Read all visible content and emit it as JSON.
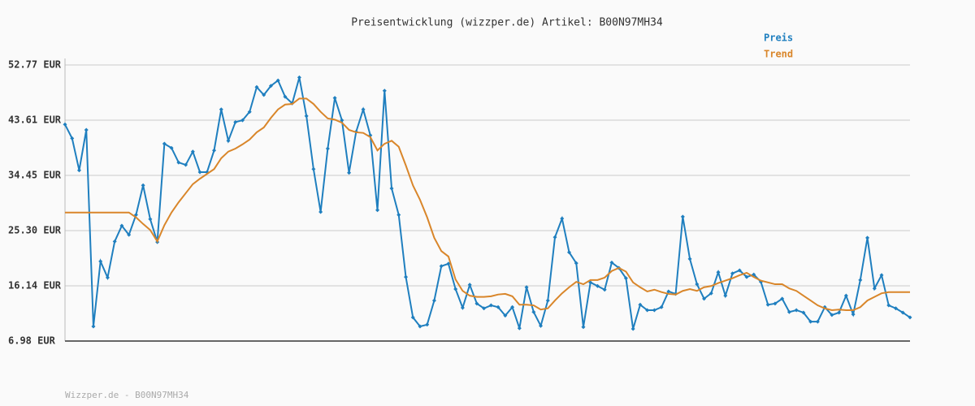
{
  "chart_data": {
    "type": "line",
    "title": "Preisentwicklung (wizzper.de) Artikel: B00N97MH34",
    "footer": "Wizzper.de - B00N97MH34",
    "ylim": [
      6.98,
      52.77
    ],
    "yticks": [
      {
        "value": 6.98,
        "label": "6.98 EUR"
      },
      {
        "value": 16.14,
        "label": "16.14 EUR"
      },
      {
        "value": 25.3,
        "label": "25.30 EUR"
      },
      {
        "value": 34.45,
        "label": "34.45 EUR"
      },
      {
        "value": 43.61,
        "label": "43.61 EUR"
      },
      {
        "value": 52.77,
        "label": "52.77 EUR"
      }
    ],
    "grid": true,
    "legend": "top-right",
    "series": [
      {
        "name": "Preis",
        "color": "#1f7fbf",
        "markers": true,
        "values": [
          42.9,
          40.6,
          35.3,
          42.0,
          9.4,
          20.2,
          17.5,
          23.5,
          26.1,
          24.6,
          27.9,
          32.8,
          27.2,
          23.4,
          39.7,
          39.0,
          36.6,
          36.2,
          38.4,
          35.0,
          35.0,
          38.6,
          45.4,
          40.2,
          43.3,
          43.6,
          45.0,
          49.1,
          47.8,
          49.3,
          50.2,
          47.5,
          46.4,
          50.7,
          44.3,
          35.5,
          28.4,
          38.9,
          47.3,
          43.6,
          34.9,
          41.7,
          45.4,
          41.1,
          28.7,
          48.5,
          32.3,
          27.9,
          17.6,
          10.9,
          9.4,
          9.7,
          13.7,
          19.4,
          19.8,
          15.6,
          12.5,
          16.3,
          13.2,
          12.4,
          12.9,
          12.6,
          11.2,
          12.6,
          9.1,
          15.9,
          11.8,
          9.5,
          13.7,
          24.2,
          27.3,
          21.7,
          19.9,
          9.3,
          16.7,
          16.1,
          15.5,
          20.0,
          19.1,
          17.4,
          9.0,
          13.0,
          12.1,
          12.1,
          12.6,
          15.2,
          14.8,
          27.6,
          20.6,
          16.4,
          14.0,
          14.9,
          18.4,
          14.5,
          18.2,
          18.7,
          17.6,
          18.0,
          16.8,
          13.0,
          13.2,
          14.0,
          11.8,
          12.1,
          11.7,
          10.2,
          10.2,
          12.6,
          11.3,
          11.7,
          14.5,
          11.4,
          17.1,
          24.1,
          15.7,
          17.9,
          12.9,
          12.4,
          11.7,
          10.9
        ]
      },
      {
        "name": "Trend",
        "color": "#d9862a",
        "markers": false,
        "values": [
          28.3,
          28.3,
          28.3,
          28.3,
          28.3,
          28.3,
          28.3,
          28.3,
          28.3,
          28.3,
          27.5,
          26.4,
          25.4,
          23.5,
          26.2,
          28.3,
          30.0,
          31.5,
          33.0,
          33.9,
          34.7,
          35.5,
          37.3,
          38.4,
          38.9,
          39.6,
          40.4,
          41.6,
          42.4,
          44.0,
          45.4,
          46.2,
          46.3,
          47.2,
          47.2,
          46.3,
          45.0,
          43.9,
          43.7,
          43.2,
          42.0,
          41.6,
          41.5,
          40.8,
          38.6,
          39.7,
          40.2,
          39.2,
          36.1,
          32.8,
          30.4,
          27.5,
          24.1,
          21.9,
          21.0,
          17.2,
          15.3,
          14.5,
          14.3,
          14.3,
          14.4,
          14.7,
          14.8,
          14.4,
          13.0,
          13.0,
          12.9,
          12.2,
          12.4,
          13.7,
          14.9,
          15.9,
          16.8,
          16.4,
          17.1,
          17.1,
          17.5,
          18.6,
          19.1,
          18.5,
          16.7,
          15.9,
          15.2,
          15.5,
          15.1,
          14.8,
          14.7,
          15.3,
          15.6,
          15.3,
          15.9,
          16.1,
          16.6,
          17.0,
          17.4,
          17.9,
          18.3,
          17.6,
          17.0,
          16.7,
          16.4,
          16.4,
          15.7,
          15.3,
          14.5,
          13.7,
          12.9,
          12.4,
          12.1,
          12.2,
          12.1,
          12.1,
          12.6,
          13.7,
          14.3,
          14.9,
          15.1,
          15.1,
          15.1,
          15.1
        ]
      }
    ]
  }
}
